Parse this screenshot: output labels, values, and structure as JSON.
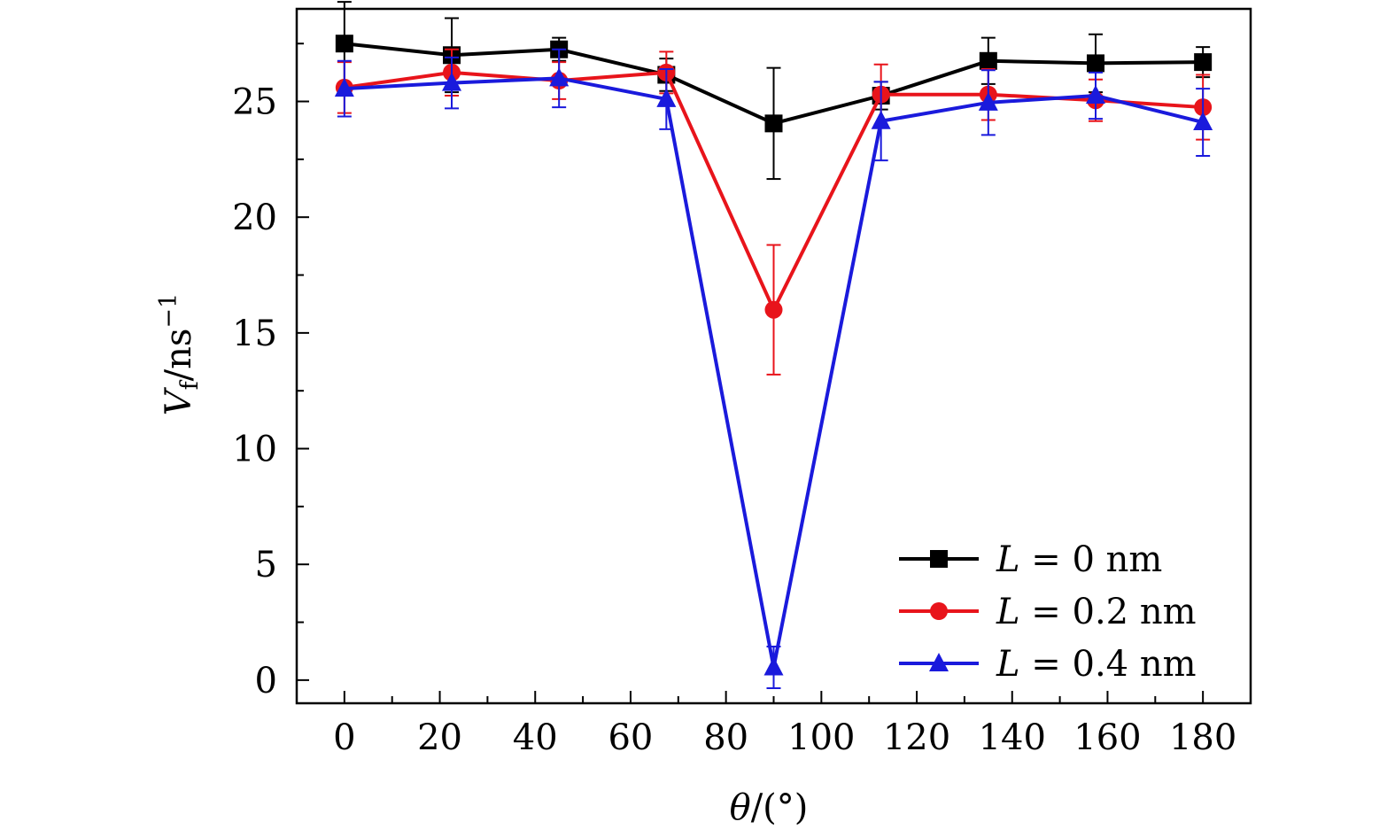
{
  "chart_data": {
    "type": "line",
    "title": "",
    "xlabel": {
      "symbol": "θ",
      "rest": "/(°)"
    },
    "ylabel": {
      "symbol": "V",
      "subscript": "f",
      "rest": "/ns",
      "superscript": "−1"
    },
    "xlim": [
      -10,
      190
    ],
    "ylim": [
      -1,
      29
    ],
    "xticks": [
      0,
      20,
      40,
      60,
      80,
      100,
      120,
      140,
      160,
      180
    ],
    "yticks": [
      0,
      5,
      10,
      15,
      20,
      25
    ],
    "x": [
      0,
      22.5,
      45,
      67.5,
      90,
      112.5,
      135,
      157.5,
      180
    ],
    "legend_position": "bottom-right",
    "series": [
      {
        "name": "L = 0 nm",
        "label_italic": "L",
        "label_rest": " = 0 nm",
        "color": "#000000",
        "marker": "square",
        "values": [
          27.5,
          27.0,
          27.25,
          26.15,
          24.05,
          25.25,
          26.75,
          26.65,
          26.7
        ],
        "errors": [
          1.8,
          1.6,
          0.5,
          0.7,
          2.4,
          0.6,
          1.0,
          1.25,
          0.65
        ]
      },
      {
        "name": "L = 0.2 nm",
        "label_italic": "L",
        "label_rest": " = 0.2 nm",
        "color": "#e8141b",
        "marker": "circle",
        "values": [
          25.6,
          26.25,
          25.9,
          26.25,
          16.0,
          25.3,
          25.3,
          25.05,
          24.75
        ],
        "errors": [
          1.1,
          1.0,
          0.8,
          0.9,
          2.8,
          1.3,
          1.1,
          0.9,
          1.4
        ]
      },
      {
        "name": "L = 0.4 nm",
        "label_italic": "L",
        "label_rest": " = 0.4 nm",
        "color": "#1a1adc",
        "marker": "triangle",
        "values": [
          25.55,
          25.8,
          26.0,
          25.1,
          0.55,
          24.15,
          24.95,
          25.25,
          24.1
        ],
        "errors": [
          1.2,
          1.1,
          1.25,
          1.3,
          0.9,
          1.7,
          1.4,
          1.0,
          1.45
        ]
      }
    ]
  }
}
